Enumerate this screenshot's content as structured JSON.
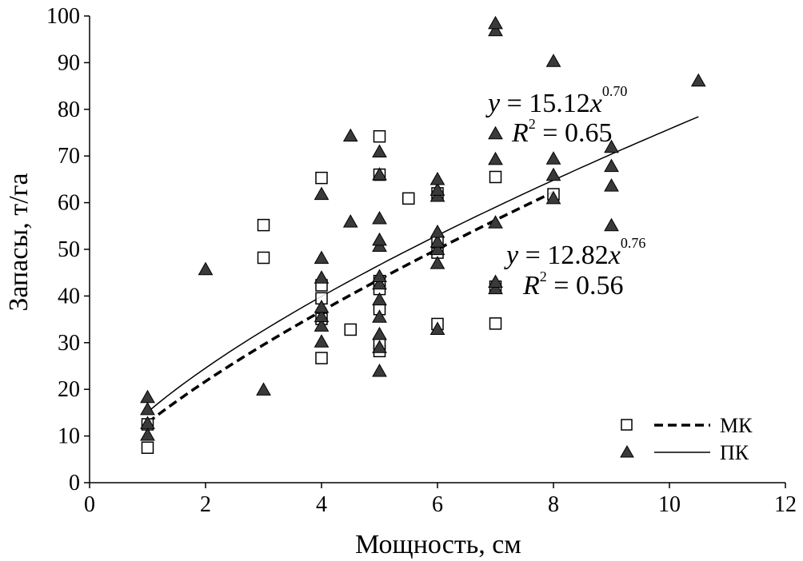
{
  "chart_data": {
    "type": "scatter",
    "xlabel": "Мощность, см",
    "ylabel": "Запасы, т/га",
    "xlim": [
      0,
      12
    ],
    "ylim": [
      0,
      100
    ],
    "x_ticks": [
      0,
      2,
      4,
      6,
      8,
      10,
      12
    ],
    "y_ticks": [
      0,
      10,
      20,
      30,
      40,
      50,
      60,
      70,
      80,
      90,
      100
    ],
    "grid": false,
    "legend_position": "bottom-right",
    "series": [
      {
        "name": "МК",
        "marker": "open-square",
        "line_style": "dashed",
        "points": [
          [
            1,
            7.5
          ],
          [
            1,
            12.5
          ],
          [
            3,
            48.2
          ],
          [
            3,
            55.2
          ],
          [
            4,
            26.7
          ],
          [
            4,
            35.1
          ],
          [
            4,
            39.5
          ],
          [
            4,
            42.3
          ],
          [
            4,
            65.3
          ],
          [
            4.5,
            32.8
          ],
          [
            5,
            28.2
          ],
          [
            5,
            29.8
          ],
          [
            5,
            37.2
          ],
          [
            5,
            41.5
          ],
          [
            5,
            43.2
          ],
          [
            5,
            66.0
          ],
          [
            5,
            74.2
          ],
          [
            5.5,
            60.9
          ],
          [
            6,
            34.0
          ],
          [
            6,
            49.3
          ],
          [
            6,
            51.5
          ],
          [
            6,
            62.0
          ],
          [
            7,
            34.1
          ],
          [
            7,
            42.0
          ],
          [
            7,
            65.5
          ],
          [
            8,
            61.8
          ]
        ],
        "fit": {
          "a": 12.82,
          "b": 0.76,
          "x_range": [
            1,
            8
          ]
        },
        "equation": {
          "y_label": "y",
          "eq_mid": " = 12.82",
          "x_label": "x",
          "exponent": "0.76",
          "r2_label": "R",
          "r2_exp": "2",
          "r2_value": " = 0.56"
        }
      },
      {
        "name": "ПК",
        "marker": "filled-triangle",
        "line_style": "solid",
        "points": [
          [
            1,
            10.1
          ],
          [
            1,
            12.6
          ],
          [
            1,
            15.6
          ],
          [
            1,
            18.2
          ],
          [
            2,
            45.6
          ],
          [
            3,
            19.8
          ],
          [
            4,
            30.1
          ],
          [
            4,
            33.5
          ],
          [
            4,
            35.5
          ],
          [
            4,
            37.5
          ],
          [
            4,
            43.8
          ],
          [
            4,
            48.0
          ],
          [
            4,
            61.7
          ],
          [
            4.5,
            55.8
          ],
          [
            4.5,
            74.2
          ],
          [
            5,
            23.8
          ],
          [
            5,
            28.9
          ],
          [
            5,
            31.7
          ],
          [
            5,
            35.4
          ],
          [
            5,
            39.1
          ],
          [
            5,
            42.5
          ],
          [
            5,
            44.1
          ],
          [
            5,
            50.6
          ],
          [
            5,
            51.9
          ],
          [
            5,
            56.5
          ],
          [
            5,
            65.9
          ],
          [
            5,
            70.8
          ],
          [
            6,
            32.8
          ],
          [
            6,
            46.9
          ],
          [
            6,
            49.9
          ],
          [
            6,
            51.5
          ],
          [
            6,
            53.6
          ],
          [
            6,
            61.3
          ],
          [
            6,
            62.6
          ],
          [
            6,
            64.9
          ],
          [
            7,
            41.5
          ],
          [
            7,
            42.9
          ],
          [
            7,
            55.6
          ],
          [
            7,
            69.2
          ],
          [
            7,
            74.7
          ],
          [
            7,
            96.8
          ],
          [
            7,
            98.3
          ],
          [
            8,
            60.8
          ],
          [
            8,
            65.8
          ],
          [
            8,
            69.3
          ],
          [
            8,
            90.2
          ],
          [
            9,
            55.0
          ],
          [
            9,
            63.5
          ],
          [
            9,
            67.7
          ],
          [
            9,
            71.8
          ],
          [
            10.5,
            86.0
          ]
        ],
        "fit": {
          "a": 15.12,
          "b": 0.7,
          "x_range": [
            1,
            10.5
          ]
        },
        "equation": {
          "y_label": "y",
          "eq_mid": " = 15.12",
          "x_label": "x",
          "exponent": "0.70",
          "r2_label": "R",
          "r2_exp": "2",
          "r2_value": " = 0.65"
        }
      }
    ]
  }
}
